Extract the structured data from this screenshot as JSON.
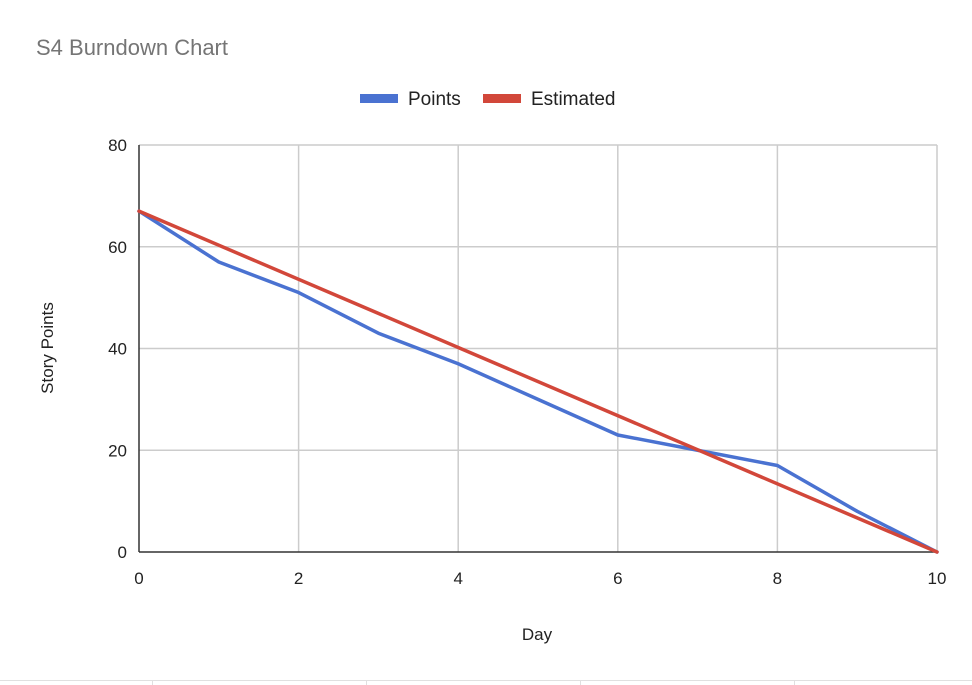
{
  "chart_data": {
    "type": "line",
    "title": "S4 Burndown Chart",
    "xlabel": "Day",
    "ylabel": "Story Points",
    "xlim": [
      0,
      10
    ],
    "ylim": [
      0,
      80
    ],
    "x_ticks": [
      0,
      2,
      4,
      6,
      8,
      10
    ],
    "y_ticks": [
      0,
      20,
      40,
      60,
      80
    ],
    "grid": true,
    "legend_position": "top-center",
    "series": [
      {
        "name": "Points",
        "color": "#4a72d1",
        "x": [
          0,
          1,
          2,
          3,
          4,
          5,
          6,
          7,
          8,
          9,
          10
        ],
        "y": [
          67,
          57,
          51,
          43,
          37,
          30,
          23,
          20,
          17,
          8,
          0
        ]
      },
      {
        "name": "Estimated",
        "color": "#d2473a",
        "x": [
          0,
          10
        ],
        "y": [
          67,
          0
        ]
      }
    ]
  }
}
